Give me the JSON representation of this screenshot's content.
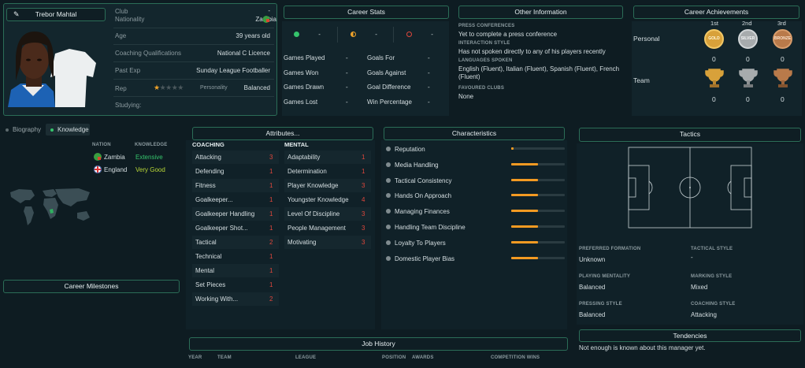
{
  "profile": {
    "name": "Trebor Mahtal",
    "club_label": "Club",
    "club_value": "-",
    "nationality_label": "Nationality",
    "nationality_value": "Zambia",
    "age_label": "Age",
    "age_value": "39 years old",
    "qual_label": "Coaching Qualifications",
    "qual_value": "National C Licence",
    "pastexp_label": "Past Exp",
    "pastexp_value": "Sunday League Footballer",
    "rep_label": "Rep",
    "rep_stars": 0.5,
    "rep_stars_max": 5,
    "personality_label": "Personality",
    "personality_value": "Balanced",
    "studying_label": "Studying:"
  },
  "career_stats": {
    "title": "Career Stats",
    "wins": "-",
    "draws": "-",
    "losses": "-",
    "rows": [
      {
        "l1": "Games Played",
        "v1": "-",
        "l2": "Goals For",
        "v2": "-"
      },
      {
        "l1": "Games Won",
        "v1": "-",
        "l2": "Goals Against",
        "v2": "-"
      },
      {
        "l1": "Games Drawn",
        "v1": "-",
        "l2": "Goal Difference",
        "v2": "-"
      },
      {
        "l1": "Games Lost",
        "v1": "-",
        "l2": "Win Percentage",
        "v2": "-"
      }
    ]
  },
  "other_info": {
    "title": "Other Information",
    "press_label": "PRESS CONFERENCES",
    "press_value": "Yet to complete a press conference",
    "interaction_label": "INTERACTION STYLE",
    "interaction_value": "Has not spoken directly to any of his players recently",
    "languages_label": "LANGUAGES SPOKEN",
    "languages_value": "English (Fluent), Italian (Fluent), Spanish (Fluent), French (Fluent)",
    "clubs_label": "FAVOURED CLUBS",
    "clubs_value": "None"
  },
  "achievements": {
    "title": "Career Achievements",
    "h1": "1st",
    "h2": "2nd",
    "h3": "3rd",
    "gold": "GOLD",
    "silver": "SILVER",
    "bronze": "BRONZE",
    "personal_label": "Personal",
    "team_label": "Team",
    "personal": [
      "0",
      "0",
      "0"
    ],
    "team": [
      "0",
      "0",
      "0"
    ],
    "colors": {
      "gold": "#d8a13a",
      "silver": "#a7abad",
      "bronze": "#b97a4a"
    }
  },
  "tabs": {
    "biography": "Biography",
    "knowledge": "Knowledge"
  },
  "knowledge": {
    "h_nation": "NATION",
    "h_knowledge": "KNOWLEDGE",
    "rows": [
      {
        "nation": "Zambia",
        "level": "Extensive"
      },
      {
        "nation": "England",
        "level": "Very Good"
      }
    ]
  },
  "milestones_title": "Career Milestones",
  "attributes": {
    "title": "Attributes...",
    "coaching_label": "COACHING",
    "mental_label": "MENTAL",
    "coaching": [
      {
        "n": "Attacking",
        "v": "3"
      },
      {
        "n": "Defending",
        "v": "1"
      },
      {
        "n": "Fitness",
        "v": "1"
      },
      {
        "n": "Goalkeeper...",
        "v": "1"
      },
      {
        "n": "Goalkeeper Handling",
        "v": "1"
      },
      {
        "n": "Goalkeeper Shot...",
        "v": "1"
      },
      {
        "n": "Tactical",
        "v": "2"
      },
      {
        "n": "Technical",
        "v": "1"
      },
      {
        "n": "Mental",
        "v": "1"
      },
      {
        "n": "Set Pieces",
        "v": "1"
      },
      {
        "n": "Working With...",
        "v": "2"
      }
    ],
    "mental": [
      {
        "n": "Adaptability",
        "v": "1"
      },
      {
        "n": "Determination",
        "v": "1"
      },
      {
        "n": "Player Knowledge",
        "v": "3"
      },
      {
        "n": "Youngster Knowledge",
        "v": "4"
      },
      {
        "n": "Level Of Discipline",
        "v": "3"
      },
      {
        "n": "People Management",
        "v": "3"
      },
      {
        "n": "Motivating",
        "v": "3"
      }
    ]
  },
  "characteristics": {
    "title": "Characteristics",
    "items": [
      {
        "n": "Reputation",
        "level": 0.04
      },
      {
        "n": "Media Handling",
        "level": 0.5
      },
      {
        "n": "Tactical Consistency",
        "level": 0.5
      },
      {
        "n": "Hands On Approach",
        "level": 0.5
      },
      {
        "n": "Managing Finances",
        "level": 0.5
      },
      {
        "n": "Handling Team Discipline",
        "level": 0.5
      },
      {
        "n": "Loyalty To Players",
        "level": 0.5
      },
      {
        "n": "Domestic Player Bias",
        "level": 0.5
      }
    ]
  },
  "tactics": {
    "title": "Tactics",
    "formation_label": "PREFERRED FORMATION",
    "formation_value": "Unknown",
    "style_label": "TACTICAL STYLE",
    "style_value": "-",
    "mentality_label": "PLAYING MENTALITY",
    "mentality_value": "Balanced",
    "marking_label": "MARKING STYLE",
    "marking_value": "Mixed",
    "pressing_label": "PRESSING STYLE",
    "pressing_value": "Balanced",
    "coaching_label": "COACHING STYLE",
    "coaching_value": "Attacking"
  },
  "tendencies": {
    "title": "Tendencies",
    "text": "Not enough is known about this manager yet."
  },
  "job_history": {
    "title": "Job History",
    "cols": [
      "YEAR",
      "TEAM",
      "LEAGUE",
      "POSITION",
      "AWARDS",
      "COMPETITION WINS"
    ]
  }
}
